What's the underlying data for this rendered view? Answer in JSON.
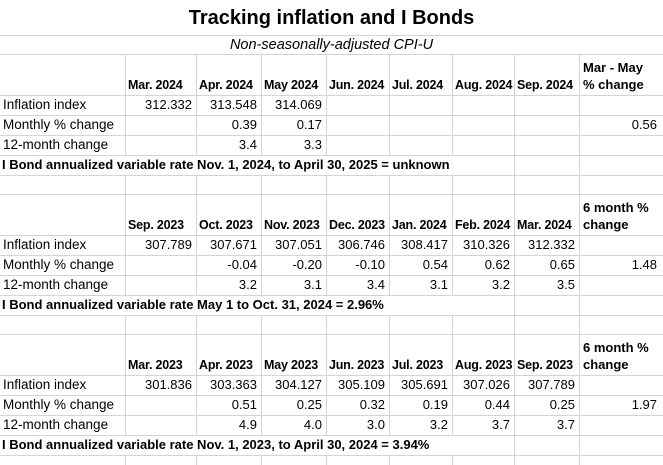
{
  "title": "Tracking inflation and I Bonds",
  "subtitle": "Non-seasonally-adjusted CPI-U",
  "row_labels": {
    "inflation": "Inflation index",
    "monthly": "Monthly % change",
    "twelve": "12-month change"
  },
  "tables": [
    {
      "change_header": [
        "Mar - May",
        "% change"
      ],
      "months": [
        "Mar. 2024",
        "Apr. 2024",
        "May 2024",
        "Jun. 2024",
        "Jul. 2024",
        "Aug. 2024",
        "Sep. 2024"
      ],
      "inflation_index": [
        "312.332",
        "313.548",
        "314.069",
        "",
        "",
        "",
        ""
      ],
      "monthly_pct_change": [
        "",
        "0.39",
        "0.17",
        "",
        "",
        "",
        ""
      ],
      "monthly_total": "0.56",
      "twelve_month_change": [
        "",
        "3.4",
        "3.3",
        "",
        "",
        "",
        ""
      ],
      "twelve_total": "",
      "note": "I Bond annualized variable rate Nov. 1, 2024, to April 30, 2025 = unknown"
    },
    {
      "change_header": [
        "6 month %",
        "change"
      ],
      "months": [
        "Sep. 2023",
        "Oct. 2023",
        "Nov. 2023",
        "Dec. 2023",
        "Jan. 2024",
        "Feb. 2024",
        "Mar. 2024"
      ],
      "inflation_index": [
        "307.789",
        "307.671",
        "307.051",
        "306.746",
        "308.417",
        "310.326",
        "312.332"
      ],
      "monthly_pct_change": [
        "",
        "-0.04",
        "-0.20",
        "-0.10",
        "0.54",
        "0.62",
        "0.65"
      ],
      "monthly_total": "1.48",
      "twelve_month_change": [
        "",
        "3.2",
        "3.1",
        "3.4",
        "3.1",
        "3.2",
        "3.5"
      ],
      "twelve_total": "",
      "note": "I Bond annualized variable rate May 1 to Oct. 31, 2024 = 2.96%"
    },
    {
      "change_header": [
        "6 month %",
        "change"
      ],
      "months": [
        "Mar. 2023",
        "Apr. 2023",
        "May 2023",
        "Jun. 2023",
        "Jul. 2023",
        "Aug. 2023",
        "Sep. 2023"
      ],
      "inflation_index": [
        "301.836",
        "303.363",
        "304.127",
        "305.109",
        "305.691",
        "307.026",
        "307.789"
      ],
      "monthly_pct_change": [
        "",
        "0.51",
        "0.25",
        "0.32",
        "0.19",
        "0.44",
        "0.25"
      ],
      "monthly_total": "1.97",
      "twelve_month_change": [
        "",
        "4.9",
        "4.0",
        "3.0",
        "3.2",
        "3.7",
        "3.7"
      ],
      "twelve_total": "",
      "note": "I Bond annualized variable rate Nov. 1, 2023, to April 30, 2024 = 3.94%"
    }
  ],
  "colors": {
    "background": "#ffffff",
    "gridline": "#d4d4d4",
    "text": "#000000"
  }
}
